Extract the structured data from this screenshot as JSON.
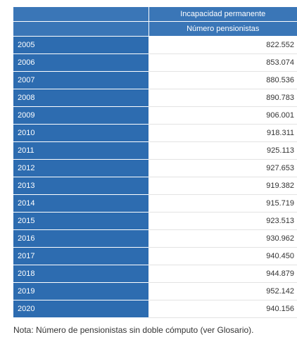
{
  "table": {
    "header_group": "Incapacidad permanente",
    "header_column": "Número pensionistas",
    "rows": [
      {
        "year": "2005",
        "value": "822.552"
      },
      {
        "year": "2006",
        "value": "853.074"
      },
      {
        "year": "2007",
        "value": "880.536"
      },
      {
        "year": "2008",
        "value": "890.783"
      },
      {
        "year": "2009",
        "value": "906.001"
      },
      {
        "year": "2010",
        "value": "918.311"
      },
      {
        "year": "2011",
        "value": "925.113"
      },
      {
        "year": "2012",
        "value": "927.653"
      },
      {
        "year": "2013",
        "value": "919.382"
      },
      {
        "year": "2014",
        "value": "915.719"
      },
      {
        "year": "2015",
        "value": "923.513"
      },
      {
        "year": "2016",
        "value": "930.962"
      },
      {
        "year": "2017",
        "value": "940.450"
      },
      {
        "year": "2018",
        "value": "944.879"
      },
      {
        "year": "2019",
        "value": "952.142"
      },
      {
        "year": "2020",
        "value": "940.156"
      }
    ]
  },
  "note": "Nota: Número de pensionistas sin doble cómputo (ver Glosario).",
  "colors": {
    "header_bg": "#3a76b7",
    "year_cell_bg": "#2d6cb0",
    "header_text": "#ffffff"
  }
}
